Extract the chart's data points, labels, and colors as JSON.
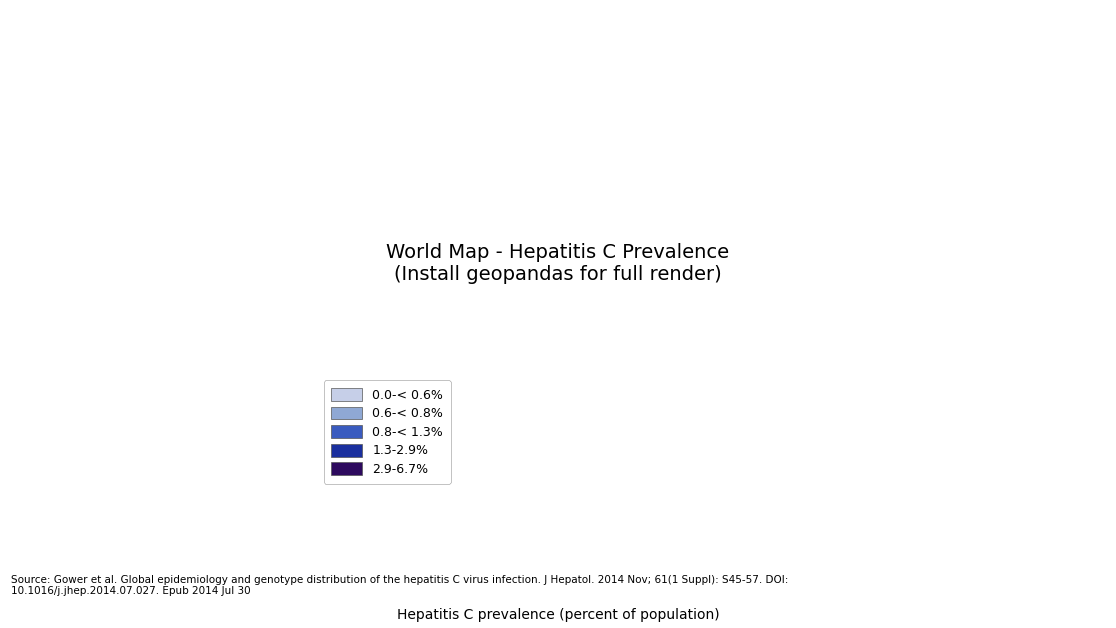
{
  "title": "Hepatitis C prevalence (percent of population)",
  "source_text": "Source: Gower et al. Global epidemiology and genotype distribution of the hepatitis C virus infection. J Hepatol. 2014 Nov; 61(1 Suppl): S45-57. DOI:\n10.1016/j.jhep.2014.07.027. Epub 2014 Jul 30",
  "legend_labels": [
    "0.0-< 0.6%",
    "0.6-< 0.8%",
    "0.8-< 1.3%",
    "1.3-2.9%",
    "2.9-6.7%"
  ],
  "legend_colors": [
    "#c6cfe8",
    "#8fa8d4",
    "#3a5bbf",
    "#1a2f9e",
    "#2d0a5e"
  ],
  "background_color": "#ffffff",
  "country_colors": {
    "USA": "#8fa8d4",
    "Canada": "#8fa8d4",
    "Greenland": "#c6cfe8",
    "Mexico": "#3a5bbf",
    "Guatemala": "#3a5bbf",
    "Belize": "#3a5bbf",
    "Honduras": "#3a5bbf",
    "El Salvador": "#3a5bbf",
    "Nicaragua": "#3a5bbf",
    "Costa Rica": "#3a5bbf",
    "Panama": "#3a5bbf",
    "Cuba": "#3a5bbf",
    "Jamaica": "#3a5bbf",
    "Haiti": "#3a5bbf",
    "Dominican Republic": "#3a5bbf",
    "Colombia": "#c6cfe8",
    "Venezuela": "#c6cfe8",
    "Guyana": "#c6cfe8",
    "Suriname": "#c6cfe8",
    "Ecuador": "#8fa8d4",
    "Peru": "#8fa8d4",
    "Bolivia": "#8fa8d4",
    "Brazil": "#8fa8d4",
    "Chile": "#8fa8d4",
    "Argentina": "#8fa8d4",
    "Uruguay": "#8fa8d4",
    "Paraguay": "#8fa8d4",
    "Norway": "#c6cfe8",
    "Sweden": "#c6cfe8",
    "Finland": "#c6cfe8",
    "Iceland": "#c6cfe8",
    "United Kingdom": "#c6cfe8",
    "Ireland": "#c6cfe8",
    "Denmark": "#c6cfe8",
    "Netherlands": "#c6cfe8",
    "Belgium": "#c6cfe8",
    "Luxembourg": "#c6cfe8",
    "France": "#c6cfe8",
    "Spain": "#8fa8d4",
    "Portugal": "#8fa8d4",
    "Germany": "#c6cfe8",
    "Switzerland": "#c6cfe8",
    "Austria": "#c6cfe8",
    "Italy": "#3a5bbf",
    "Greece": "#3a5bbf",
    "Poland": "#c6cfe8",
    "Czech Republic": "#c6cfe8",
    "Slovakia": "#c6cfe8",
    "Hungary": "#8fa8d4",
    "Romania": "#3a5bbf",
    "Bulgaria": "#3a5bbf",
    "Serbia": "#8fa8d4",
    "Croatia": "#8fa8d4",
    "Bosnia and Herzegovina": "#8fa8d4",
    "Albania": "#8fa8d4",
    "North Macedonia": "#8fa8d4",
    "Slovenia": "#c6cfe8",
    "Estonia": "#c6cfe8",
    "Latvia": "#c6cfe8",
    "Lithuania": "#c6cfe8",
    "Belarus": "#8fa8d4",
    "Ukraine": "#3a5bbf",
    "Moldova": "#3a5bbf",
    "Russia": "#2d0a5e",
    "Kazakhstan": "#3a5bbf",
    "Uzbekistan": "#3a5bbf",
    "Turkmenistan": "#3a5bbf",
    "Tajikistan": "#3a5bbf",
    "Kyrgyzstan": "#3a5bbf",
    "Azerbaijan": "#3a5bbf",
    "Georgia": "#3a5bbf",
    "Armenia": "#3a5bbf",
    "Turkey": "#3a5bbf",
    "Syria": "#1a2f9e",
    "Lebanon": "#1a2f9e",
    "Israel": "#8fa8d4",
    "Jordan": "#3a5bbf",
    "Iraq": "#1a2f9e",
    "Iran": "#3a5bbf",
    "Saudi Arabia": "#8fa8d4",
    "Yemen": "#3a5bbf",
    "Oman": "#3a5bbf",
    "UAE": "#3a5bbf",
    "Qatar": "#3a5bbf",
    "Bahrain": "#3a5bbf",
    "Kuwait": "#3a5bbf",
    "Egypt": "#1a2f9e",
    "Libya": "#3a5bbf",
    "Tunisia": "#3a5bbf",
    "Algeria": "#3a5bbf",
    "Morocco": "#3a5bbf",
    "Mauritania": "#3a5bbf",
    "Mali": "#3a5bbf",
    "Niger": "#3a5bbf",
    "Chad": "#3a5bbf",
    "Sudan": "#3a5bbf",
    "Ethiopia": "#3a5bbf",
    "Eritrea": "#3a5bbf",
    "Djibouti": "#3a5bbf",
    "Somalia": "#3a5bbf",
    "Kenya": "#3a5bbf",
    "Uganda": "#3a5bbf",
    "Tanzania": "#3a5bbf",
    "Rwanda": "#3a5bbf",
    "Burundi": "#3a5bbf",
    "DRC": "#1a2f9e",
    "Congo": "#3a5bbf",
    "Cameroon": "#3a5bbf",
    "Central African Republic": "#3a5bbf",
    "Nigeria": "#3a5bbf",
    "Ghana": "#3a5bbf",
    "Ivory Coast": "#3a5bbf",
    "Burkina Faso": "#3a5bbf",
    "Senegal": "#3a5bbf",
    "Guinea": "#3a5bbf",
    "Sierra Leone": "#3a5bbf",
    "Liberia": "#3a5bbf",
    "Guinea-Bissau": "#3a5bbf",
    "Gambia": "#3a5bbf",
    "Angola": "#3a5bbf",
    "Zambia": "#3a5bbf",
    "Zimbabwe": "#3a5bbf",
    "Mozambique": "#3a5bbf",
    "Malawi": "#3a5bbf",
    "Madagascar": "#3a5bbf",
    "South Africa": "#8fa8d4",
    "Botswana": "#8fa8d4",
    "Namibia": "#8fa8d4",
    "Pakistan": "#3a5bbf",
    "Afghanistan": "#3a5bbf",
    "India": "#3a5bbf",
    "Nepal": "#3a5bbf",
    "Bangladesh": "#3a5bbf",
    "Sri Lanka": "#3a5bbf",
    "Myanmar": "#3a5bbf",
    "Thailand": "#8fa8d4",
    "Vietnam": "#3a5bbf",
    "Cambodia": "#3a5bbf",
    "Laos": "#3a5bbf",
    "Malaysia": "#8fa8d4",
    "Indonesia": "#3a5bbf",
    "Philippines": "#8fa8d4",
    "China": "#3a5bbf",
    "Mongolia": "#3a5bbf",
    "North Korea": "#3a5bbf",
    "South Korea": "#8fa8d4",
    "Japan": "#c6cfe8",
    "Australia": "#3a5bbf",
    "New Zealand": "#c6cfe8",
    "Papua New Guinea": "#3a5bbf"
  }
}
